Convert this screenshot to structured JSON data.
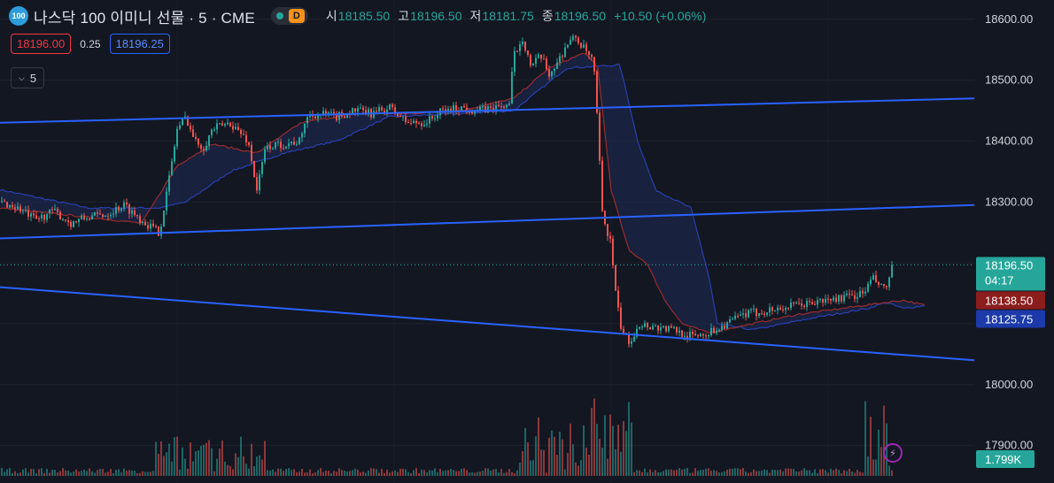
{
  "header": {
    "symbol_badge": "100",
    "title": "나스닥 100 이미니 선물 · 5 · CME",
    "mode_badge": "D",
    "ohlc": [
      {
        "label": "시",
        "value": "18185.50"
      },
      {
        "label": "고",
        "value": "18196.50"
      },
      {
        "label": "저",
        "value": "18181.75"
      },
      {
        "label": "종",
        "value": "18196.50"
      }
    ],
    "change": "+10.50 (+0.06%)"
  },
  "quote": {
    "bid": "18196.00",
    "spread": "0.25",
    "ask": "18196.25"
  },
  "indicators_toggle": {
    "count": "5"
  },
  "colors": {
    "up": "#26a69a",
    "down": "#ef5350",
    "line": "#2962ff",
    "bg": "#131722"
  },
  "chart_data": {
    "type": "candlestick",
    "interval_minutes": 5,
    "ylim": [
      17850,
      18620
    ],
    "y_ticks": [
      17900,
      18000,
      18100,
      18200,
      18300,
      18400,
      18500,
      18600
    ],
    "y_tick_labels": [
      "17900.00",
      "18000.00",
      "",
      "",
      "18300.00",
      "18400.00",
      "18500.00",
      "18600.00"
    ],
    "last_price": {
      "value": "18196.50",
      "countdown": "04:17"
    },
    "red_line_value": "18138.50",
    "blue_line_value": "18125.75",
    "volume_label": "1.799K",
    "approx_close_path": [
      [
        0,
        18300
      ],
      [
        20,
        18290
      ],
      [
        40,
        18270
      ],
      [
        60,
        18285
      ],
      [
        80,
        18265
      ],
      [
        100,
        18275
      ],
      [
        120,
        18280
      ],
      [
        140,
        18295
      ],
      [
        160,
        18270
      ],
      [
        180,
        18250
      ],
      [
        190,
        18330
      ],
      [
        200,
        18420
      ],
      [
        210,
        18440
      ],
      [
        220,
        18400
      ],
      [
        230,
        18390
      ],
      [
        240,
        18420
      ],
      [
        260,
        18430
      ],
      [
        280,
        18400
      ],
      [
        290,
        18320
      ],
      [
        300,
        18390
      ],
      [
        320,
        18395
      ],
      [
        340,
        18400
      ],
      [
        345,
        18440
      ],
      [
        360,
        18445
      ],
      [
        380,
        18440
      ],
      [
        400,
        18450
      ],
      [
        420,
        18445
      ],
      [
        440,
        18455
      ],
      [
        460,
        18430
      ],
      [
        480,
        18430
      ],
      [
        500,
        18450
      ],
      [
        520,
        18455
      ],
      [
        540,
        18450
      ],
      [
        560,
        18455
      ],
      [
        575,
        18460
      ],
      [
        580,
        18540
      ],
      [
        590,
        18570
      ],
      [
        600,
        18520
      ],
      [
        610,
        18540
      ],
      [
        620,
        18510
      ],
      [
        630,
        18530
      ],
      [
        640,
        18560
      ],
      [
        650,
        18570
      ],
      [
        660,
        18550
      ],
      [
        670,
        18530
      ],
      [
        675,
        18420
      ],
      [
        680,
        18280
      ],
      [
        690,
        18230
      ],
      [
        695,
        18150
      ],
      [
        700,
        18100
      ],
      [
        705,
        18080
      ],
      [
        712,
        18070
      ],
      [
        720,
        18100
      ],
      [
        740,
        18095
      ],
      [
        760,
        18090
      ],
      [
        780,
        18080
      ],
      [
        800,
        18085
      ],
      [
        820,
        18100
      ],
      [
        840,
        18115
      ],
      [
        860,
        18120
      ],
      [
        880,
        18125
      ],
      [
        900,
        18130
      ],
      [
        920,
        18135
      ],
      [
        940,
        18140
      ],
      [
        960,
        18145
      ],
      [
        975,
        18150
      ],
      [
        985,
        18175
      ],
      [
        995,
        18160
      ],
      [
        1000,
        18155
      ],
      [
        1008,
        18196.5
      ]
    ],
    "approx_red_line": [
      [
        0,
        18290
      ],
      [
        100,
        18275
      ],
      [
        160,
        18265
      ],
      [
        200,
        18360
      ],
      [
        240,
        18395
      ],
      [
        290,
        18380
      ],
      [
        340,
        18430
      ],
      [
        400,
        18445
      ],
      [
        460,
        18445
      ],
      [
        520,
        18450
      ],
      [
        580,
        18470
      ],
      [
        620,
        18520
      ],
      [
        660,
        18545
      ],
      [
        675,
        18520
      ],
      [
        690,
        18320
      ],
      [
        710,
        18220
      ],
      [
        730,
        18200
      ],
      [
        750,
        18140
      ],
      [
        770,
        18100
      ],
      [
        800,
        18085
      ],
      [
        850,
        18100
      ],
      [
        900,
        18115
      ],
      [
        950,
        18125
      ],
      [
        1000,
        18135
      ],
      [
        1020,
        18138.5
      ],
      [
        1045,
        18130
      ]
    ],
    "approx_blue_line": [
      [
        0,
        18320
      ],
      [
        100,
        18290
      ],
      [
        180,
        18290
      ],
      [
        210,
        18300
      ],
      [
        260,
        18350
      ],
      [
        320,
        18380
      ],
      [
        380,
        18400
      ],
      [
        440,
        18440
      ],
      [
        520,
        18445
      ],
      [
        580,
        18450
      ],
      [
        640,
        18520
      ],
      [
        700,
        18525
      ],
      [
        720,
        18400
      ],
      [
        740,
        18320
      ],
      [
        780,
        18290
      ],
      [
        800,
        18180
      ],
      [
        810,
        18100
      ],
      [
        850,
        18090
      ],
      [
        920,
        18110
      ],
      [
        980,
        18125
      ],
      [
        1000,
        18135
      ],
      [
        1020,
        18125
      ],
      [
        1045,
        18130
      ]
    ],
    "trendlines": [
      {
        "from": [
          0,
          18430
        ],
        "to": [
          1100,
          18470
        ]
      },
      {
        "from": [
          0,
          18240
        ],
        "to": [
          1100,
          18295
        ]
      },
      {
        "from": [
          0,
          18160
        ],
        "to": [
          1100,
          18040
        ]
      }
    ]
  }
}
